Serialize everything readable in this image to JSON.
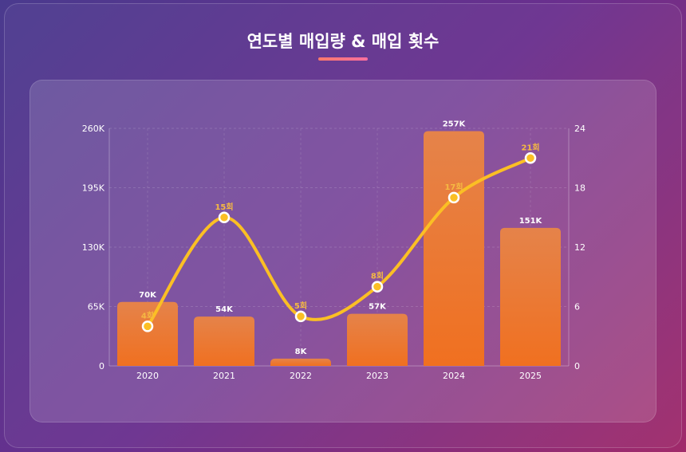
{
  "chart_data": {
    "type": "bar+line",
    "title": "연도별 매입량 & 매입 횟수",
    "categories": [
      "2020",
      "2021",
      "2022",
      "2023",
      "2024",
      "2025"
    ],
    "series": [
      {
        "type": "bar",
        "axis": "left",
        "values": [
          70000,
          54000,
          8000,
          57000,
          257000,
          151000
        ],
        "labels": [
          "70K",
          "54K",
          "8K",
          "57K",
          "257K",
          "151K"
        ],
        "color": "#f07a2a"
      },
      {
        "type": "line",
        "axis": "right",
        "values": [
          4,
          15,
          5,
          8,
          17,
          21
        ],
        "labels": [
          "4회",
          "15회",
          "5회",
          "8회",
          "17회",
          "21회"
        ],
        "color": "#fbbf24"
      }
    ],
    "y_left": {
      "range": [
        0,
        260000
      ],
      "ticks": [
        "0",
        "65K",
        "130K",
        "195K",
        "260K"
      ]
    },
    "y_right": {
      "range": [
        0,
        24
      ],
      "ticks": [
        "0",
        "6",
        "12",
        "18",
        "24"
      ]
    },
    "grid": true,
    "legend": "none"
  }
}
